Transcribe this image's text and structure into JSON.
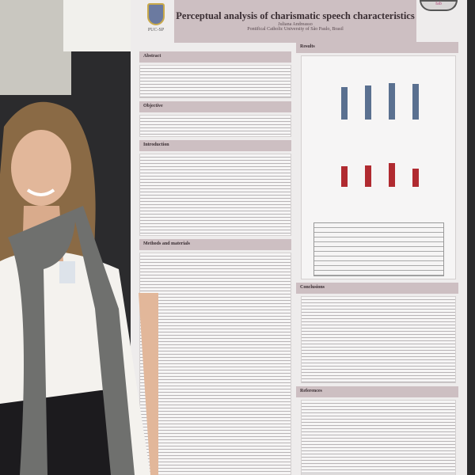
{
  "poster": {
    "title": "Perceptual analysis of charismatic speech characteristics",
    "author": "Juliana Andreasso",
    "affiliation": "Pontifical Catholic University of São Paulo, Brasil",
    "logo_text": "PUC-SP",
    "partner_logo_text": "fab",
    "sections": {
      "abstract": "Abstract",
      "objective": "Objective",
      "introduction": "Introduction",
      "methods": "Methods and materials",
      "results": "Results",
      "conclusions": "Conclusions",
      "references": "References"
    },
    "figures": {
      "best_bar_color": "#5a7090",
      "worst_bar_color": "#b02a30",
      "best_relative_heights": [
        0.69,
        0.72,
        0.76,
        0.75
      ],
      "worst_relative_heights": [
        0.48,
        0.49,
        0.55,
        0.41
      ]
    }
  },
  "colors": {
    "header": "#cdbfc2",
    "background": "#2b2b2d"
  }
}
